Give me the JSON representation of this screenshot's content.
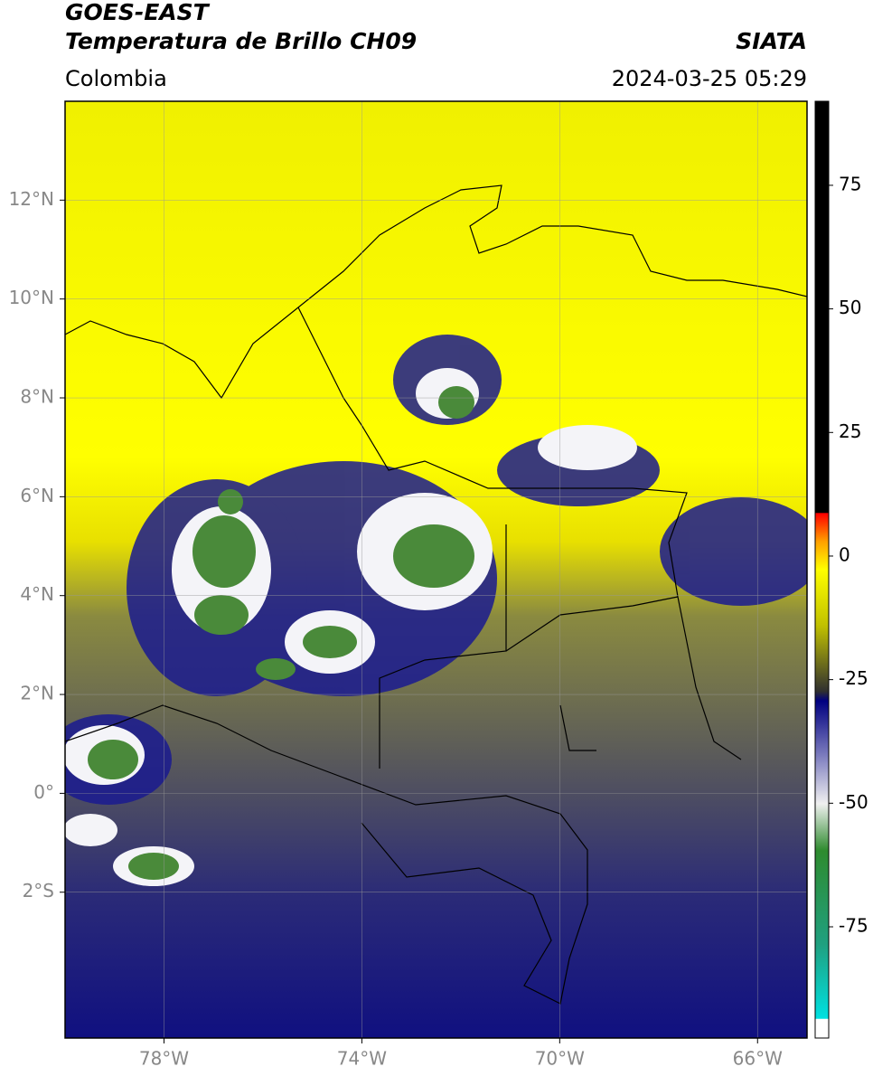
{
  "header": {
    "line1": "GOES-EAST",
    "line2": "Temperatura de Brillo CH09",
    "region": "Colombia",
    "source": "SIATA",
    "datetime": "2024-03-25 05:29"
  },
  "map": {
    "xlim": [
      -80,
      -65
    ],
    "ylim": [
      -4.95,
      14
    ],
    "xticks": [
      {
        "value": -78,
        "label": "78°W"
      },
      {
        "value": -74,
        "label": "74°W"
      },
      {
        "value": -70,
        "label": "70°W"
      },
      {
        "value": -66,
        "label": "66°W"
      }
    ],
    "yticks": [
      {
        "value": 12,
        "label": "12°N"
      },
      {
        "value": 10,
        "label": "10°N"
      },
      {
        "value": 8,
        "label": "8°N"
      },
      {
        "value": 6,
        "label": "6°N"
      },
      {
        "value": 4,
        "label": "4°N"
      },
      {
        "value": 2,
        "label": "2°N"
      },
      {
        "value": 0,
        "label": "0°"
      },
      {
        "value": -2,
        "label": "2°S"
      }
    ]
  },
  "colorbar": {
    "lim": [
      -97.5,
      92
    ],
    "ticks": [
      -75,
      -50,
      -25,
      0,
      25,
      50,
      75
    ]
  }
}
